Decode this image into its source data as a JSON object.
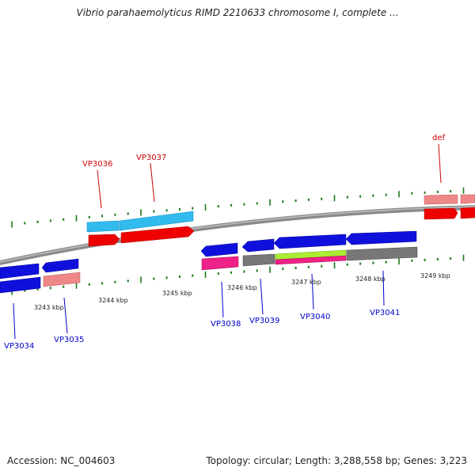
{
  "title": "Vibrio parahaemolyticus RIMD 2210633 chromosome I, complete ...",
  "footer": {
    "accession": "Accession: NC_004603",
    "topology": "Topology: circular; Length: 3,288,558 bp; Genes: 3,223"
  },
  "colors": {
    "backbone": "#8a8a8a",
    "tick": "#1a7a1a",
    "gene_label_top": "#cc0000",
    "gene_label_bottom": "#0000cc",
    "blue": "#1010dd",
    "red": "#ee0000",
    "salmon": "#ee8888",
    "cyan": "#33bbee",
    "magenta": "#ee2288",
    "gray": "#777777",
    "lime": "#aaee33"
  },
  "scale_labels": [
    "3243 kbp",
    "3244 kbp",
    "3245 kbp",
    "3246 kbp",
    "3247 kbp",
    "3248 kbp",
    "3249 kbp"
  ],
  "gene_labels_top": [
    "VP3036",
    "VP3037",
    "def"
  ],
  "gene_labels_bottom": [
    "VP3034",
    "VP3035",
    "VP3038",
    "VP3039",
    "VP3040",
    "VP3041"
  ]
}
